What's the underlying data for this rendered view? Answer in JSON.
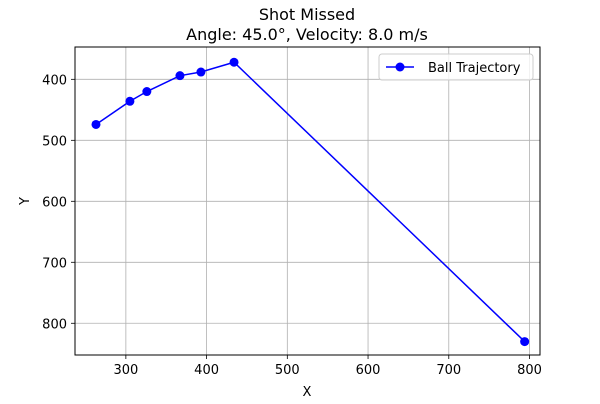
{
  "chart_data": {
    "type": "line",
    "title": "Shot Missed",
    "subtitle": "Angle: 45.0°, Velocity: 8.0 m/s",
    "xlabel": "X",
    "ylabel": "Y",
    "xlim": [
      237,
      813
    ],
    "ylim": [
      852,
      347
    ],
    "y_inverted": true,
    "grid": true,
    "legend_position": "top-right",
    "x_ticks": [
      300,
      400,
      500,
      600,
      700,
      800
    ],
    "y_ticks": [
      400,
      500,
      600,
      700,
      800
    ],
    "series": [
      {
        "name": "Ball Trajectory",
        "color": "#0000ff",
        "marker": "circle",
        "points": [
          {
            "x": 263,
            "y": 474
          },
          {
            "x": 305,
            "y": 436
          },
          {
            "x": 326,
            "y": 420
          },
          {
            "x": 367,
            "y": 394
          },
          {
            "x": 393,
            "y": 388
          },
          {
            "x": 434,
            "y": 372
          },
          {
            "x": 794,
            "y": 830
          }
        ]
      }
    ]
  }
}
